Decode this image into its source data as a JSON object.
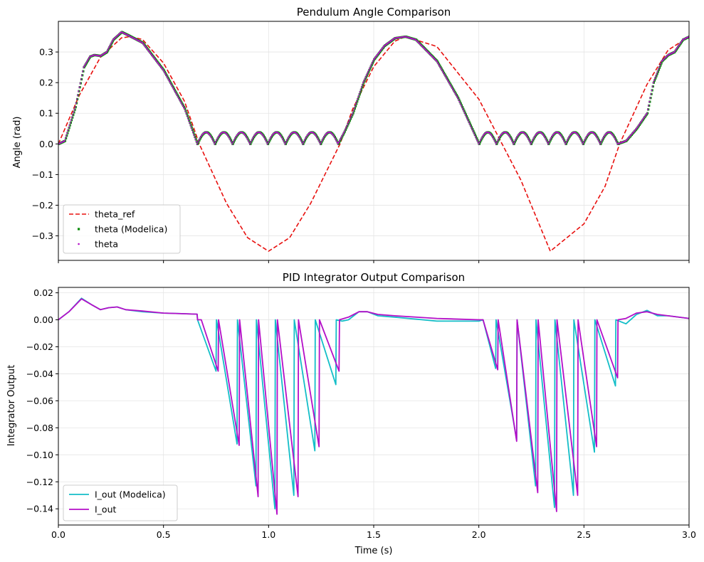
{
  "figure": {
    "background": "#ffffff"
  },
  "chart_data": [
    {
      "type": "line",
      "title": "Pendulum Angle Comparison",
      "xlabel": "",
      "ylabel": "Angle (rad)",
      "xlim": [
        0,
        3
      ],
      "ylim": [
        -0.38,
        0.4
      ],
      "xticks": [
        0,
        0.5,
        1.0,
        1.5,
        2.0,
        2.5,
        3.0
      ],
      "xtick_labels": [
        "",
        "",
        "",
        "",
        "",
        "",
        ""
      ],
      "yticks": [
        0.3,
        0.2,
        0.1,
        0.0,
        -0.1,
        -0.2,
        -0.3
      ],
      "ytick_labels": [
        "0.3",
        "0.2",
        "0.1",
        "0.0",
        "−0.1",
        "−0.2",
        "−0.3"
      ],
      "grid": true,
      "legend": "lower-left",
      "series": [
        {
          "name": "theta_ref",
          "style": "dashed",
          "color": "#e8110f",
          "description_formula": "0.35*sin(2*pi*t/1.34)",
          "x": [
            0,
            0.1,
            0.2,
            0.3,
            0.34,
            0.4,
            0.5,
            0.6,
            0.67,
            0.8,
            0.9,
            1.0,
            1.1,
            1.2,
            1.34,
            1.4,
            1.5,
            1.6,
            1.65,
            1.8,
            2.0,
            2.2,
            2.34,
            2.5,
            2.6,
            2.67,
            2.8,
            2.9,
            3.0
          ],
          "y": [
            0,
            0.159,
            0.283,
            0.346,
            0.35,
            0.341,
            0.264,
            0.139,
            0.0,
            -0.194,
            -0.306,
            -0.35,
            -0.306,
            -0.194,
            0.0,
            0.114,
            0.252,
            0.335,
            0.35,
            0.318,
            0.146,
            -0.118,
            -0.35,
            -0.261,
            -0.139,
            0.0,
            0.194,
            0.306,
            0.35
          ]
        },
        {
          "name": "theta (Modelica)",
          "style": "markers-square",
          "color": "#0a8a0a",
          "x": [
            0,
            0.03,
            0.08,
            0.12,
            0.15,
            0.17,
            0.2,
            0.23,
            0.26,
            0.3,
            0.33,
            0.4,
            0.5,
            0.6,
            0.66,
            0.7,
            0.8,
            0.9,
            1.0,
            1.1,
            1.2,
            1.3,
            1.33,
            1.36,
            1.4,
            1.45,
            1.5,
            1.55,
            1.6,
            1.65,
            1.7,
            1.8,
            1.9,
            2.0,
            2.1,
            2.2,
            2.3,
            2.4,
            2.5,
            2.6,
            2.66,
            2.7,
            2.75,
            2.8,
            2.83,
            2.87,
            2.9,
            2.93,
            2.97,
            3.0
          ],
          "y": [
            0,
            0.01,
            0.12,
            0.25,
            0.285,
            0.29,
            0.287,
            0.3,
            0.34,
            0.365,
            0.355,
            0.33,
            0.24,
            0.115,
            0.0,
            0.0,
            0.0,
            0.0,
            0.0,
            0.0,
            0.0,
            0.0,
            0.005,
            0.04,
            0.1,
            0.2,
            0.275,
            0.32,
            0.345,
            0.35,
            0.34,
            0.27,
            0.15,
            0.0,
            0.0,
            0.0,
            0.0,
            0.0,
            0.0,
            0.0,
            0.0,
            0.01,
            0.05,
            0.1,
            0.2,
            0.27,
            0.29,
            0.3,
            0.34,
            0.35
          ]
        },
        {
          "name": "theta",
          "style": "markers-dot",
          "color": "#b40fc8",
          "x": [
            0,
            0.03,
            0.08,
            0.12,
            0.15,
            0.17,
            0.2,
            0.23,
            0.26,
            0.3,
            0.33,
            0.4,
            0.5,
            0.6,
            0.66,
            0.7,
            0.8,
            0.9,
            1.0,
            1.1,
            1.2,
            1.3,
            1.33,
            1.36,
            1.4,
            1.45,
            1.5,
            1.55,
            1.6,
            1.65,
            1.7,
            1.8,
            1.9,
            2.0,
            2.1,
            2.2,
            2.3,
            2.4,
            2.5,
            2.6,
            2.66,
            2.7,
            2.75,
            2.8,
            2.83,
            2.87,
            2.9,
            2.93,
            2.97,
            3.0
          ],
          "y": [
            0,
            0.01,
            0.12,
            0.25,
            0.285,
            0.29,
            0.287,
            0.3,
            0.34,
            0.365,
            0.355,
            0.33,
            0.24,
            0.115,
            0.0,
            0.0,
            0.0,
            0.0,
            0.0,
            0.0,
            0.0,
            0.0,
            0.005,
            0.04,
            0.1,
            0.2,
            0.275,
            0.32,
            0.345,
            0.35,
            0.34,
            0.27,
            0.15,
            0.0,
            0.0,
            0.0,
            0.0,
            0.0,
            0.0,
            0.0,
            0.0,
            0.01,
            0.05,
            0.1,
            0.2,
            0.27,
            0.29,
            0.3,
            0.34,
            0.35
          ]
        }
      ],
      "oscillation_segments": [
        {
          "series": "theta (Modelica)",
          "x_start": 0.66,
          "x_end": 1.33,
          "arches": 8,
          "peak": 0.038
        },
        {
          "series": "theta",
          "x_start": 0.66,
          "x_end": 1.33,
          "arches": 8,
          "peak": 0.038
        },
        {
          "series": "theta (Modelica)",
          "x_start": 2.0,
          "x_end": 2.66,
          "arches": 8,
          "peak": 0.038
        },
        {
          "series": "theta",
          "x_start": 2.0,
          "x_end": 2.66,
          "arches": 8,
          "peak": 0.038
        }
      ]
    },
    {
      "type": "line",
      "title": "PID Integrator Output Comparison",
      "xlabel": "Time (s)",
      "ylabel": "Integrator Output",
      "xlim": [
        0,
        3
      ],
      "ylim": [
        -0.152,
        0.024
      ],
      "xticks": [
        0,
        0.5,
        1.0,
        1.5,
        2.0,
        2.5,
        3.0
      ],
      "xtick_labels": [
        "0.0",
        "0.5",
        "1.0",
        "1.5",
        "2.0",
        "2.5",
        "3.0"
      ],
      "yticks": [
        0.02,
        0.0,
        -0.02,
        -0.04,
        -0.06,
        -0.08,
        -0.1,
        -0.12,
        -0.14
      ],
      "ytick_labels": [
        "0.02",
        "0.00",
        "−0.02",
        "−0.04",
        "−0.06",
        "−0.08",
        "−0.10",
        "−0.12",
        "−0.14"
      ],
      "grid": true,
      "legend": "lower-left",
      "series": [
        {
          "name": "I_out (Modelica)",
          "color": "#14bec8",
          "x": [
            0,
            0.05,
            0.11,
            0.16,
            0.2,
            0.24,
            0.28,
            0.32,
            0.4,
            0.5,
            0.66,
            0.662,
            0.75,
            0.752,
            0.85,
            0.852,
            0.94,
            0.942,
            1.03,
            1.032,
            1.12,
            1.122,
            1.22,
            1.222,
            1.32,
            1.322,
            1.35,
            1.38,
            1.43,
            1.47,
            1.52,
            1.6,
            1.8,
            2.0,
            2.02,
            2.08,
            2.082,
            2.18,
            2.182,
            2.27,
            2.272,
            2.36,
            2.362,
            2.45,
            2.452,
            2.55,
            2.552,
            2.65,
            2.652,
            2.7,
            2.75,
            2.8,
            2.85,
            2.9,
            3.0
          ],
          "y": [
            0,
            0.006,
            0.016,
            0.011,
            0.0075,
            0.009,
            0.0095,
            0.0075,
            0.006,
            0.005,
            0.0042,
            0.0,
            -0.038,
            0.0,
            -0.092,
            0.0,
            -0.123,
            0.0,
            -0.14,
            0.0,
            -0.13,
            0.0,
            -0.097,
            0.0,
            -0.048,
            0.0,
            -0.001,
            0.0,
            0.006,
            0.006,
            0.003,
            0.002,
            -0.001,
            -0.001,
            0.0,
            -0.036,
            0.0,
            -0.089,
            0.0,
            -0.123,
            0.0,
            -0.139,
            0.0,
            -0.13,
            0.0,
            -0.098,
            0.0,
            -0.049,
            0.0,
            -0.003,
            0.004,
            0.007,
            0.003,
            0.003,
            0.001
          ]
        },
        {
          "name": "I_out",
          "color": "#b40fc8",
          "x": [
            0,
            0.05,
            0.11,
            0.16,
            0.2,
            0.24,
            0.28,
            0.32,
            0.4,
            0.5,
            0.66,
            0.662,
            0.68,
            0.76,
            0.762,
            0.86,
            0.862,
            0.95,
            0.952,
            1.04,
            1.042,
            1.14,
            1.142,
            1.24,
            1.242,
            1.335,
            1.337,
            1.38,
            1.43,
            1.47,
            1.52,
            1.6,
            1.8,
            2.0,
            2.02,
            2.09,
            2.092,
            2.18,
            2.182,
            2.28,
            2.282,
            2.37,
            2.372,
            2.47,
            2.472,
            2.56,
            2.562,
            2.66,
            2.662,
            2.7,
            2.75,
            2.8,
            2.85,
            2.9,
            3.0
          ],
          "y": [
            0,
            0.006,
            0.0155,
            0.011,
            0.0075,
            0.009,
            0.0095,
            0.0075,
            0.0065,
            0.005,
            0.0042,
            0.0,
            0.0,
            -0.038,
            0.0,
            -0.093,
            0.0,
            -0.131,
            0.0,
            -0.144,
            0.0,
            -0.131,
            0.0,
            -0.094,
            0.0,
            -0.038,
            0.0,
            0.002,
            0.006,
            0.006,
            0.004,
            0.003,
            0.001,
            0.0,
            0.0,
            -0.037,
            0.0,
            -0.09,
            0.0,
            -0.128,
            0.0,
            -0.142,
            0.0,
            -0.13,
            0.0,
            -0.094,
            0.0,
            -0.043,
            0.0,
            0.001,
            0.005,
            0.006,
            0.004,
            0.003,
            0.001
          ]
        }
      ]
    }
  ]
}
